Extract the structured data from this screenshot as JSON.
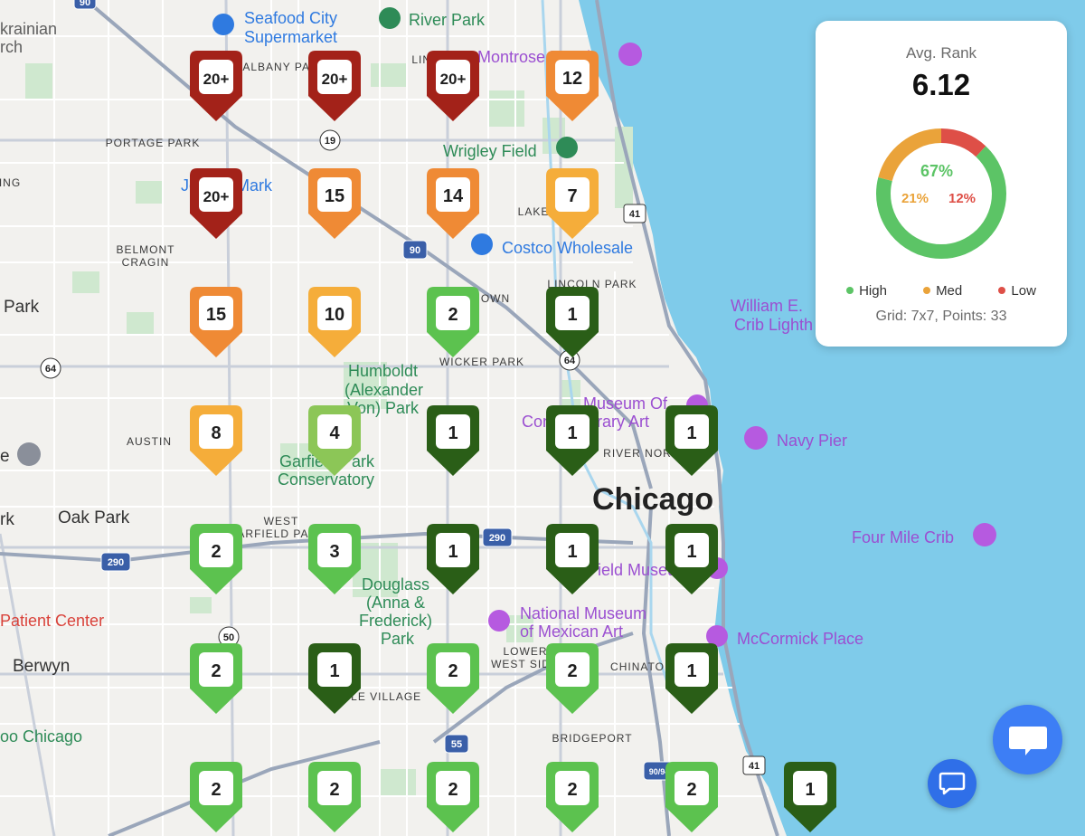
{
  "map": {
    "city_label": "Chicago",
    "neighborhoods": [
      {
        "id": "albany-park",
        "text": "ALBANY PARK"
      },
      {
        "id": "lincoln-square",
        "text": "LIN SQ"
      },
      {
        "id": "portage-park",
        "text": "PORTAGE PARK"
      },
      {
        "id": "belmont-cragin-1",
        "text": "BELMONT"
      },
      {
        "id": "belmont-cragin-2",
        "text": "CRAGIN"
      },
      {
        "id": "lake-view",
        "text": "LAKE"
      },
      {
        "id": "lincoln-park",
        "text": "LINCOLN PARK"
      },
      {
        "id": "town",
        "text": "OWN"
      },
      {
        "id": "wicker-park",
        "text": "WICKER PARK"
      },
      {
        "id": "austin",
        "text": "AUSTIN"
      },
      {
        "id": "river-north",
        "text": "RIVER NOR"
      },
      {
        "id": "west-garfield-1",
        "text": "WEST"
      },
      {
        "id": "west-garfield-2",
        "text": "ARFIELD PA"
      },
      {
        "id": "lower-west-1",
        "text": "LOWER"
      },
      {
        "id": "lower-west-2",
        "text": "WEST SID"
      },
      {
        "id": "chinatown",
        "text": "CHINATO"
      },
      {
        "id": "little-village",
        "text": "TLE VILLAGE"
      },
      {
        "id": "bridgeport",
        "text": "BRIDGEPORT"
      },
      {
        "id": "ing",
        "text": "ING"
      }
    ],
    "places": [
      {
        "id": "ukrainian-1",
        "text": "krainian",
        "color": "#5f5f5f"
      },
      {
        "id": "ukrainian-2",
        "text": "rch",
        "color": "#5f5f5f"
      },
      {
        "id": "seafood-1",
        "text": "Seafood City",
        "color": "#2f7ae0"
      },
      {
        "id": "seafood-2",
        "text": "Supermarket",
        "color": "#2f7ae0"
      },
      {
        "id": "river-park",
        "text": "River Park",
        "color": "#2e8b57"
      },
      {
        "id": "montrose",
        "text": "Montrose Beach",
        "color": "#9b4fd1"
      },
      {
        "id": "wrigley",
        "text": "Wrigley Field",
        "color": "#2e8b57"
      },
      {
        "id": "joboo",
        "text": "Jo Boo Mark",
        "color": "#2f7ae0"
      },
      {
        "id": "costco",
        "text": "Costco Wholesale",
        "color": "#2f7ae0"
      },
      {
        "id": "dever-1",
        "text": "William E.",
        "color": "#9b4fd1"
      },
      {
        "id": "dever-2",
        "text": "Crib Lighth",
        "color": "#9b4fd1"
      },
      {
        "id": "park-left",
        "text": "Park",
        "color": "#333333"
      },
      {
        "id": "humboldt-1",
        "text": "Humboldt",
        "color": "#2e8b57"
      },
      {
        "id": "humboldt-2",
        "text": "(Alexander",
        "color": "#2e8b57"
      },
      {
        "id": "humboldt-3",
        "text": "Von) Park",
        "color": "#2e8b57"
      },
      {
        "id": "mca-1",
        "text": "Museum Of",
        "color": "#9b4fd1"
      },
      {
        "id": "mca-2",
        "text": "Contemporary Art",
        "color": "#9b4fd1"
      },
      {
        "id": "navy-pier",
        "text": "Navy Pier",
        "color": "#9b4fd1"
      },
      {
        "id": "garfield-1",
        "text": "Garfield Park",
        "color": "#2e8b57"
      },
      {
        "id": "garfield-2",
        "text": "Conservatory",
        "color": "#2e8b57"
      },
      {
        "id": "oak-park",
        "text": "Oak Park",
        "color": "#333333"
      },
      {
        "id": "rk",
        "text": "rk",
        "color": "#333333"
      },
      {
        "id": "e",
        "text": "e",
        "color": "#333333"
      },
      {
        "id": "field-museum",
        "text": "Field Museum",
        "color": "#9b4fd1"
      },
      {
        "id": "four-mile",
        "text": "Four Mile Crib",
        "color": "#9b4fd1"
      },
      {
        "id": "douglass-1",
        "text": "Douglass",
        "color": "#2e8b57"
      },
      {
        "id": "douglass-2",
        "text": "(Anna &",
        "color": "#2e8b57"
      },
      {
        "id": "douglass-3",
        "text": "Frederick)",
        "color": "#2e8b57"
      },
      {
        "id": "douglass-4",
        "text": "Park",
        "color": "#2e8b57"
      },
      {
        "id": "nmma-1",
        "text": "National Museum",
        "color": "#9b4fd1"
      },
      {
        "id": "nmma-2",
        "text": "of Mexican Art",
        "color": "#9b4fd1"
      },
      {
        "id": "patient-center",
        "text": "Patient Center",
        "color": "#d9423a"
      },
      {
        "id": "mccormick",
        "text": "McCormick Place",
        "color": "#9b4fd1"
      },
      {
        "id": "berwyn",
        "text": "Berwyn",
        "color": "#333333"
      },
      {
        "id": "oo-chicago",
        "text": "oo Chicago",
        "color": "#2e8b57"
      }
    ],
    "route_shields": [
      {
        "id": "r90-top",
        "text": "90",
        "type": "interstate"
      },
      {
        "id": "r19",
        "text": "19",
        "type": "state"
      },
      {
        "id": "r41-top",
        "text": "41",
        "type": "us"
      },
      {
        "id": "r90",
        "text": "90",
        "type": "interstate"
      },
      {
        "id": "r64-left",
        "text": "64",
        "type": "state"
      },
      {
        "id": "r64",
        "text": "64",
        "type": "state"
      },
      {
        "id": "r290-mid",
        "text": "290",
        "type": "interstate"
      },
      {
        "id": "r290-left",
        "text": "290",
        "type": "interstate"
      },
      {
        "id": "r50",
        "text": "50",
        "type": "state"
      },
      {
        "id": "r55",
        "text": "55",
        "type": "interstate"
      },
      {
        "id": "r90-94",
        "text": "90/94",
        "type": "interstate"
      },
      {
        "id": "r41-bottom",
        "text": "41",
        "type": "us"
      }
    ]
  },
  "grid_pins": [
    {
      "row": 1,
      "col": 1,
      "label": "20+",
      "level": "worst"
    },
    {
      "row": 1,
      "col": 2,
      "label": "20+",
      "level": "worst"
    },
    {
      "row": 1,
      "col": 3,
      "label": "20+",
      "level": "worst"
    },
    {
      "row": 1,
      "col": 4,
      "label": "12",
      "level": "poor"
    },
    {
      "row": 2,
      "col": 1,
      "label": "20+",
      "level": "worst"
    },
    {
      "row": 2,
      "col": 2,
      "label": "15",
      "level": "poor"
    },
    {
      "row": 2,
      "col": 3,
      "label": "14",
      "level": "poor"
    },
    {
      "row": 2,
      "col": 4,
      "label": "7",
      "level": "medium"
    },
    {
      "row": 3,
      "col": 1,
      "label": "15",
      "level": "poor"
    },
    {
      "row": 3,
      "col": 2,
      "label": "10",
      "level": "medium"
    },
    {
      "row": 3,
      "col": 3,
      "label": "2",
      "level": "good"
    },
    {
      "row": 3,
      "col": 4,
      "label": "1",
      "level": "best"
    },
    {
      "row": 4,
      "col": 1,
      "label": "8",
      "level": "medium"
    },
    {
      "row": 4,
      "col": 2,
      "label": "4",
      "level": "fair"
    },
    {
      "row": 4,
      "col": 3,
      "label": "1",
      "level": "best"
    },
    {
      "row": 4,
      "col": 4,
      "label": "1",
      "level": "best"
    },
    {
      "row": 4,
      "col": 5,
      "label": "1",
      "level": "best"
    },
    {
      "row": 5,
      "col": 1,
      "label": "2",
      "level": "good"
    },
    {
      "row": 5,
      "col": 2,
      "label": "3",
      "level": "good"
    },
    {
      "row": 5,
      "col": 3,
      "label": "1",
      "level": "best"
    },
    {
      "row": 5,
      "col": 4,
      "label": "1",
      "level": "best"
    },
    {
      "row": 5,
      "col": 5,
      "label": "1",
      "level": "best"
    },
    {
      "row": 6,
      "col": 1,
      "label": "2",
      "level": "good"
    },
    {
      "row": 6,
      "col": 2,
      "label": "1",
      "level": "best"
    },
    {
      "row": 6,
      "col": 3,
      "label": "2",
      "level": "good"
    },
    {
      "row": 6,
      "col": 4,
      "label": "2",
      "level": "good"
    },
    {
      "row": 6,
      "col": 5,
      "label": "1",
      "level": "best"
    },
    {
      "row": 7,
      "col": 1,
      "label": "2",
      "level": "good"
    },
    {
      "row": 7,
      "col": 2,
      "label": "2",
      "level": "good"
    },
    {
      "row": 7,
      "col": 3,
      "label": "2",
      "level": "good"
    },
    {
      "row": 7,
      "col": 4,
      "label": "2",
      "level": "good"
    },
    {
      "row": 7,
      "col": 5,
      "label": "2",
      "level": "good"
    },
    {
      "row": 7,
      "col": 6,
      "label": "1",
      "level": "best"
    }
  ],
  "pin_colors": {
    "worst": "#a32219",
    "poor": "#ef8a35",
    "medium": "#f5ad3a",
    "fair": "#8cc657",
    "good": "#5cc24f",
    "best": "#2a5e17"
  },
  "summary": {
    "title": "Avg. Rank",
    "value": "6.12",
    "high_pct": "67%",
    "med_pct": "21%",
    "low_pct": "12%",
    "high_fraction": 0.67,
    "med_fraction": 0.21,
    "low_fraction": 0.12,
    "legend_high": "High",
    "legend_med": "Med",
    "legend_low": "Low",
    "grid_info": "Grid: 7x7, Points: 33",
    "colors": {
      "high": "#5cc466",
      "med": "#eaa33a",
      "low": "#de4f47"
    }
  },
  "chat": {
    "big_icon": "chat-bubble-icon",
    "small_icon": "chat-bubble-icon"
  }
}
